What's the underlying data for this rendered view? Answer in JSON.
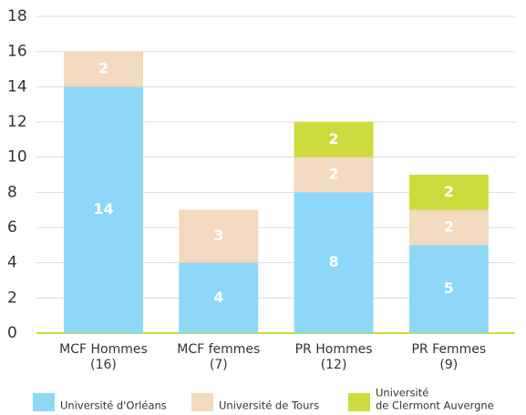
{
  "chart_data": {
    "type": "stacked_bar",
    "categories": [
      [
        "MCF Hommes",
        "(16)"
      ],
      [
        "MCF femmes",
        "(7)"
      ],
      [
        "PR Hommes",
        "(12)"
      ],
      [
        "PR Femmes",
        "(9)"
      ]
    ],
    "series": [
      {
        "name": "Université d'Orléans",
        "color": "#8dd8f8",
        "values": [
          14,
          4,
          8,
          5
        ]
      },
      {
        "name": "Université de Tours",
        "color": "#f2d9bf",
        "values": [
          2,
          3,
          2,
          2
        ]
      },
      {
        "name": [
          "Université",
          "de Clermont Auvergne"
        ],
        "color": "#cddc3c",
        "values": [
          null,
          null,
          2,
          2
        ]
      }
    ],
    "ylim": [
      0,
      18
    ],
    "yticks": [
      0,
      2,
      4,
      6,
      8,
      10,
      12,
      14,
      16,
      18
    ],
    "grid": true,
    "legend": "bottom"
  }
}
